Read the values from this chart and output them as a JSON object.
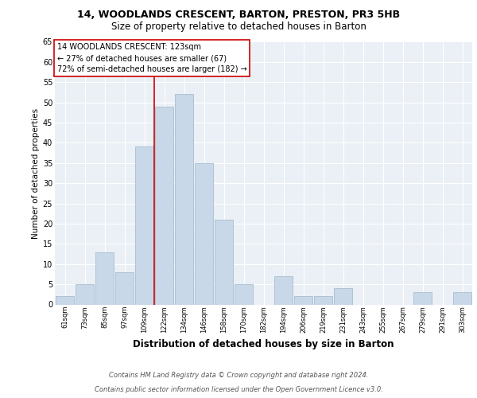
{
  "title1": "14, WOODLANDS CRESCENT, BARTON, PRESTON, PR3 5HB",
  "title2": "Size of property relative to detached houses in Barton",
  "xlabel": "Distribution of detached houses by size in Barton",
  "ylabel": "Number of detached properties",
  "categories": [
    "61sqm",
    "73sqm",
    "85sqm",
    "97sqm",
    "109sqm",
    "122sqm",
    "134sqm",
    "146sqm",
    "158sqm",
    "170sqm",
    "182sqm",
    "194sqm",
    "206sqm",
    "219sqm",
    "231sqm",
    "243sqm",
    "255sqm",
    "267sqm",
    "279sqm",
    "291sqm",
    "303sqm"
  ],
  "values": [
    2,
    5,
    13,
    8,
    39,
    49,
    52,
    35,
    21,
    5,
    0,
    7,
    2,
    2,
    4,
    0,
    0,
    0,
    3,
    0,
    3
  ],
  "bar_color": "#c8d8e8",
  "bar_edge_color": "#a8bece",
  "vline_color": "#cc0000",
  "vline_pos": 4.5,
  "ylim": [
    0,
    65
  ],
  "yticks": [
    0,
    5,
    10,
    15,
    20,
    25,
    30,
    35,
    40,
    45,
    50,
    55,
    60,
    65
  ],
  "annotation_lines": [
    "14 WOODLANDS CRESCENT: 123sqm",
    "← 27% of detached houses are smaller (67)",
    "72% of semi-detached houses are larger (182) →"
  ],
  "annotation_box_facecolor": "#ffffff",
  "annotation_box_edgecolor": "#cc0000",
  "footnote1": "Contains HM Land Registry data © Crown copyright and database right 2024.",
  "footnote2": "Contains public sector information licensed under the Open Government Licence v3.0.",
  "plot_bg_color": "#eaf0f6",
  "grid_color": "#ffffff",
  "title1_fontsize": 9,
  "title2_fontsize": 8.5,
  "xlabel_fontsize": 8.5,
  "ylabel_fontsize": 7.5,
  "xtick_fontsize": 6,
  "ytick_fontsize": 7,
  "annot_fontsize": 7,
  "footnote_fontsize": 6
}
